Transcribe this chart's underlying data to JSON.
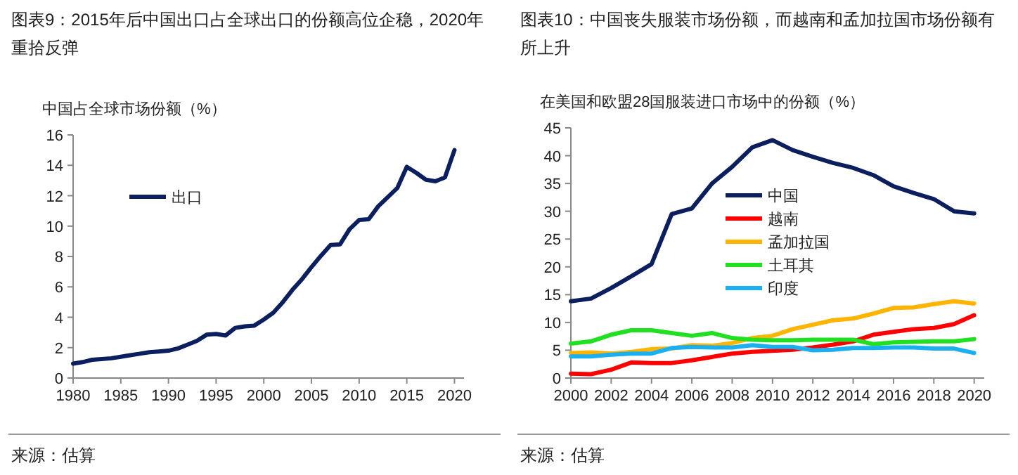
{
  "chart_data": [
    {
      "type": "line",
      "title": "图表9：2015年后中国出口占全球出口的份额高位企稳，2020年重拾反弹",
      "ylabel": "中国占全球市场份额（%）",
      "x": [
        1980,
        1981,
        1982,
        1983,
        1984,
        1985,
        1986,
        1987,
        1988,
        1989,
        1990,
        1991,
        1992,
        1993,
        1994,
        1995,
        1996,
        1997,
        1998,
        1999,
        2000,
        2001,
        2002,
        2003,
        2004,
        2005,
        2006,
        2007,
        2008,
        2009,
        2010,
        2011,
        2012,
        2013,
        2014,
        2015,
        2016,
        2017,
        2018,
        2019,
        2020
      ],
      "series": [
        {
          "name": "出口",
          "color": "#0b1f5e",
          "values": [
            0.95,
            1.05,
            1.2,
            1.25,
            1.3,
            1.4,
            1.5,
            1.6,
            1.7,
            1.75,
            1.8,
            1.95,
            2.2,
            2.45,
            2.85,
            2.9,
            2.8,
            3.3,
            3.4,
            3.45,
            3.85,
            4.3,
            5.0,
            5.8,
            6.5,
            7.3,
            8.05,
            8.75,
            8.8,
            9.8,
            10.4,
            10.45,
            11.3,
            11.9,
            12.5,
            13.9,
            13.5,
            13.05,
            12.95,
            13.2,
            15.0
          ]
        }
      ],
      "xlim": [
        1980,
        2021
      ],
      "xticks": [
        1980,
        1985,
        1990,
        1995,
        2000,
        2005,
        2010,
        2015,
        2020
      ],
      "ylim": [
        0,
        16
      ],
      "yticks": [
        0,
        2,
        4,
        6,
        8,
        10,
        12,
        14,
        16
      ],
      "legend": "top left",
      "annotations": [
        "来源：估算"
      ]
    },
    {
      "type": "line",
      "title": "图表10：中国丧失服装市场份额，而越南和孟加拉国市场份额有所上升",
      "ylabel": "在美国和欧盟28国服装进口市场中的份额（%）",
      "x": [
        2000,
        2001,
        2002,
        2003,
        2004,
        2005,
        2006,
        2007,
        2008,
        2009,
        2010,
        2011,
        2012,
        2013,
        2014,
        2015,
        2016,
        2017,
        2018,
        2019,
        2020
      ],
      "series": [
        {
          "name": "中国",
          "color": "#0b1f5e",
          "values": [
            13.8,
            14.3,
            16.2,
            18.3,
            20.5,
            29.5,
            30.5,
            35,
            38,
            41.5,
            42.8,
            41,
            39.8,
            38.7,
            37.8,
            36.5,
            34.5,
            33.3,
            32.2,
            30,
            29.6
          ]
        },
        {
          "name": "越南",
          "color": "#ff0000",
          "values": [
            0.8,
            0.7,
            1.5,
            2.8,
            2.7,
            2.7,
            3.2,
            3.8,
            4.4,
            4.7,
            4.9,
            5.1,
            5.5,
            6.0,
            6.6,
            7.8,
            8.3,
            8.8,
            9.0,
            9.7,
            11.3
          ]
        },
        {
          "name": "孟加拉国",
          "color": "#ffb400",
          "values": [
            4.5,
            4.6,
            4.4,
            4.7,
            5.2,
            5.3,
            5.9,
            5.8,
            6.3,
            7.2,
            7.6,
            8.8,
            9.6,
            10.4,
            10.7,
            11.6,
            12.6,
            12.7,
            13.3,
            13.8,
            13.4
          ]
        },
        {
          "name": "土耳其",
          "color": "#21e021",
          "values": [
            6.2,
            6.6,
            7.8,
            8.6,
            8.6,
            8.1,
            7.6,
            8.1,
            7.2,
            6.9,
            6.8,
            6.8,
            6.9,
            6.9,
            6.9,
            6.1,
            6.4,
            6.5,
            6.6,
            6.6,
            7.0
          ]
        },
        {
          "name": "印度",
          "color": "#1ab0f0",
          "values": [
            3.9,
            3.9,
            4.2,
            4.4,
            4.4,
            5.4,
            5.6,
            5.5,
            5.5,
            5.9,
            5.6,
            5.6,
            5.0,
            5.1,
            5.4,
            5.4,
            5.5,
            5.5,
            5.3,
            5.3,
            4.5
          ]
        }
      ],
      "xlim": [
        2000,
        2020.5
      ],
      "xticks": [
        2000,
        2002,
        2004,
        2006,
        2008,
        2010,
        2012,
        2014,
        2016,
        2018,
        2020
      ],
      "ylim": [
        0,
        45
      ],
      "yticks": [
        0,
        5,
        10,
        15,
        20,
        25,
        30,
        35,
        40,
        45
      ],
      "legend": "left",
      "annotations": [
        "来源：估算"
      ]
    }
  ]
}
